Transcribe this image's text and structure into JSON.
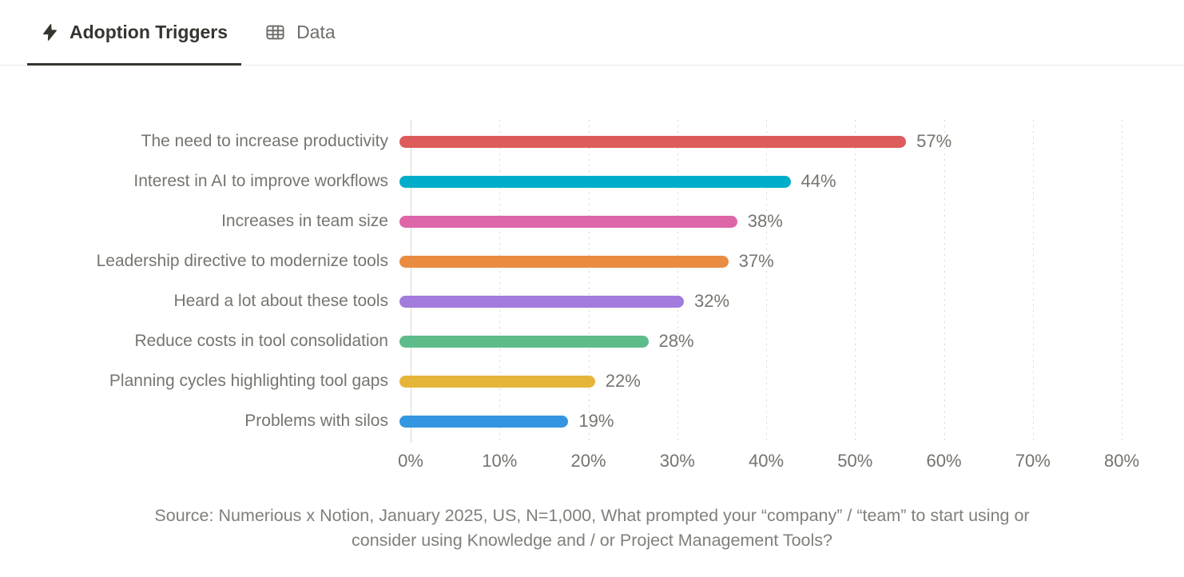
{
  "tabs": [
    {
      "label": "Adoption Triggers",
      "icon": "lightning-icon",
      "active": true
    },
    {
      "label": "Data",
      "icon": "table-icon",
      "active": false
    }
  ],
  "chart_data": {
    "type": "bar",
    "orientation": "horizontal",
    "title": "Adoption Triggers",
    "categories": [
      "The need to increase productivity",
      "Interest in AI to improve workflows",
      "Increases in team size",
      "Leadership directive to modernize tools",
      "Heard a lot about these tools",
      "Reduce costs in tool consolidation",
      "Planning cycles highlighting tool gaps",
      "Problems with silos"
    ],
    "values": [
      57,
      44,
      38,
      37,
      32,
      28,
      22,
      19
    ],
    "value_labels": [
      "57%",
      "44%",
      "38%",
      "37%",
      "32%",
      "28%",
      "22%",
      "19%"
    ],
    "bar_colors": [
      "#DD5C5B",
      "#00AECB",
      "#DD66A9",
      "#E98C42",
      "#A27BDC",
      "#5EBC8A",
      "#E5B53A",
      "#3496E1"
    ],
    "x_tick_labels": [
      "0%",
      "10%",
      "20%",
      "30%",
      "40%",
      "50%",
      "60%",
      "70%",
      "80%"
    ],
    "xlim": [
      0,
      80
    ],
    "grid": "vertical-dotted",
    "legend": "none"
  },
  "caption": {
    "line1": "Source: Numerious x Notion, January 2025, US, N=1,000, What prompted your “company” / “team” to start using or",
    "line2": "consider using Knowledge and / or Project Management Tools?"
  }
}
